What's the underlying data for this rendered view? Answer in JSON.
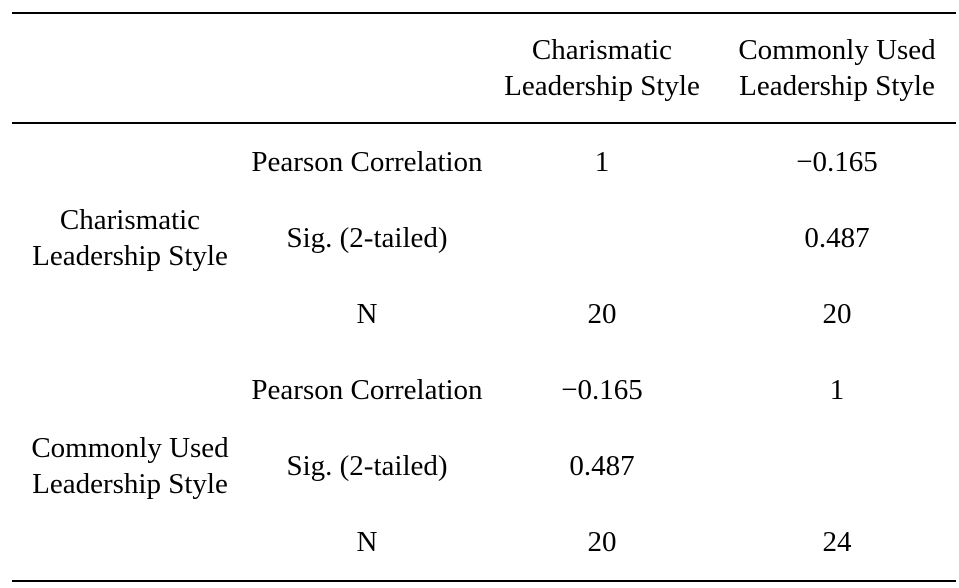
{
  "table": {
    "columns": [
      "",
      "",
      "Charismatic Leadership Style",
      "Commonly Used Leadership Style"
    ],
    "groups": [
      {
        "label": "Charismatic Leadership Style",
        "rows": [
          {
            "stat": "Pearson Correlation",
            "col1": "1",
            "col2": "−0.165"
          },
          {
            "stat": "Sig. (2-tailed)",
            "col1": "",
            "col2": "0.487"
          },
          {
            "stat": "N",
            "col1": "20",
            "col2": "20"
          }
        ]
      },
      {
        "label": "Commonly Used Leadership Style",
        "rows": [
          {
            "stat": "Pearson Correlation",
            "col1": "−0.165",
            "col2": "1"
          },
          {
            "stat": "Sig. (2-tailed)",
            "col1": "0.487",
            "col2": ""
          },
          {
            "stat": "N",
            "col1": "20",
            "col2": "24"
          }
        ]
      }
    ]
  }
}
